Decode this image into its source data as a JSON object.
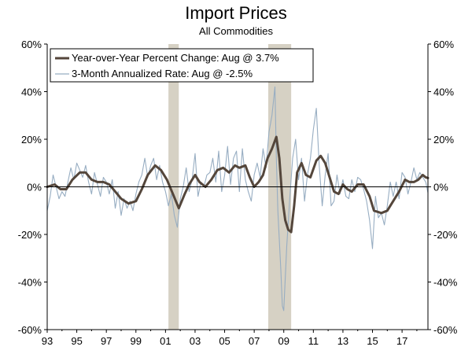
{
  "chart_data": {
    "type": "line",
    "title": "Import Prices",
    "subtitle": "All Commodities",
    "xlabel": "",
    "ylabel": "",
    "xlim": [
      1993.0,
      2018.75
    ],
    "ylim": [
      -60,
      60
    ],
    "y_ticks": [
      60,
      40,
      20,
      0,
      -20,
      -40,
      -60
    ],
    "y_tick_labels": [
      "60%",
      "40%",
      "20%",
      "0%",
      "-20%",
      "-40%",
      "-60%"
    ],
    "x_ticks": [
      1993,
      1995,
      1997,
      1999,
      2001,
      2003,
      2005,
      2007,
      2009,
      2011,
      2013,
      2015,
      2017
    ],
    "x_tick_labels": [
      "93",
      "95",
      "97",
      "99",
      "01",
      "03",
      "05",
      "07",
      "09",
      "11",
      "13",
      "15",
      "17"
    ],
    "recessions": [
      [
        2001.2,
        2001.9
      ],
      [
        2007.95,
        2009.5
      ]
    ],
    "legend_position": "top-left",
    "colors": {
      "yoy": "#54463b",
      "three_month": "#97adc2",
      "recession": "#d6d1c4",
      "axis": "#000000"
    },
    "series": [
      {
        "name": "Year-over-Year Percent Change: Aug @ 3.7%",
        "key": "yoy",
        "points": [
          [
            1993.0,
            0
          ],
          [
            1993.5,
            1
          ],
          [
            1993.9,
            -1
          ],
          [
            1994.3,
            -1
          ],
          [
            1994.7,
            3
          ],
          [
            1995.2,
            6
          ],
          [
            1995.6,
            6
          ],
          [
            1996.0,
            3
          ],
          [
            1996.4,
            2
          ],
          [
            1996.8,
            2
          ],
          [
            1997.2,
            1
          ],
          [
            1997.6,
            -2
          ],
          [
            1998.0,
            -5
          ],
          [
            1998.5,
            -7
          ],
          [
            1999.0,
            -6
          ],
          [
            1999.4,
            -1
          ],
          [
            1999.8,
            5
          ],
          [
            2000.3,
            9
          ],
          [
            2000.7,
            7
          ],
          [
            2001.1,
            3
          ],
          [
            2001.5,
            -3
          ],
          [
            2001.9,
            -9
          ],
          [
            2002.3,
            -3
          ],
          [
            2002.6,
            1
          ],
          [
            2003.0,
            5
          ],
          [
            2003.3,
            2
          ],
          [
            2003.7,
            0
          ],
          [
            2004.1,
            3
          ],
          [
            2004.5,
            7
          ],
          [
            2004.9,
            8
          ],
          [
            2005.3,
            6
          ],
          [
            2005.7,
            9
          ],
          [
            2006.0,
            8
          ],
          [
            2006.4,
            9
          ],
          [
            2006.7,
            4
          ],
          [
            2007.0,
            0
          ],
          [
            2007.3,
            2
          ],
          [
            2007.6,
            5
          ],
          [
            2007.9,
            12
          ],
          [
            2008.2,
            16
          ],
          [
            2008.5,
            21
          ],
          [
            2008.7,
            12
          ],
          [
            2008.9,
            -5
          ],
          [
            2009.1,
            -14
          ],
          [
            2009.3,
            -18
          ],
          [
            2009.5,
            -19
          ],
          [
            2009.7,
            -8
          ],
          [
            2009.9,
            6
          ],
          [
            2010.2,
            10
          ],
          [
            2010.5,
            5
          ],
          [
            2010.8,
            4
          ],
          [
            2011.2,
            11
          ],
          [
            2011.5,
            13
          ],
          [
            2011.8,
            10
          ],
          [
            2012.1,
            4
          ],
          [
            2012.4,
            -2
          ],
          [
            2012.7,
            -3
          ],
          [
            2013.0,
            1
          ],
          [
            2013.3,
            -1
          ],
          [
            2013.6,
            -2
          ],
          [
            2014.0,
            1
          ],
          [
            2014.4,
            1
          ],
          [
            2014.8,
            -4
          ],
          [
            2015.1,
            -10
          ],
          [
            2015.6,
            -11
          ],
          [
            2016.0,
            -10
          ],
          [
            2016.4,
            -6
          ],
          [
            2016.8,
            -2
          ],
          [
            2017.2,
            3
          ],
          [
            2017.5,
            2
          ],
          [
            2017.8,
            2
          ],
          [
            2018.1,
            3
          ],
          [
            2018.4,
            5
          ],
          [
            2018.6,
            4
          ],
          [
            2018.75,
            3.7
          ]
        ]
      },
      {
        "name": "3-Month Annualized Rate: Aug @ -2.5%",
        "key": "three_month",
        "points": [
          [
            1993.0,
            -10
          ],
          [
            1993.2,
            -4
          ],
          [
            1993.4,
            5
          ],
          [
            1993.6,
            0
          ],
          [
            1993.8,
            -5
          ],
          [
            1994.0,
            -2
          ],
          [
            1994.2,
            -4
          ],
          [
            1994.4,
            2
          ],
          [
            1994.6,
            8
          ],
          [
            1994.8,
            3
          ],
          [
            1995.0,
            10
          ],
          [
            1995.2,
            7
          ],
          [
            1995.4,
            4
          ],
          [
            1995.6,
            9
          ],
          [
            1995.8,
            2
          ],
          [
            1996.0,
            -3
          ],
          [
            1996.2,
            6
          ],
          [
            1996.4,
            1
          ],
          [
            1996.6,
            -4
          ],
          [
            1996.8,
            4
          ],
          [
            1997.0,
            2
          ],
          [
            1997.2,
            -3
          ],
          [
            1997.4,
            3
          ],
          [
            1997.6,
            -9
          ],
          [
            1997.8,
            -2
          ],
          [
            1998.0,
            -12
          ],
          [
            1998.2,
            -5
          ],
          [
            1998.4,
            -9
          ],
          [
            1998.6,
            -6
          ],
          [
            1998.8,
            -10
          ],
          [
            1999.0,
            -3
          ],
          [
            1999.2,
            2
          ],
          [
            1999.4,
            5
          ],
          [
            1999.6,
            12
          ],
          [
            1999.8,
            4
          ],
          [
            2000.0,
            9
          ],
          [
            2000.2,
            12
          ],
          [
            2000.4,
            3
          ],
          [
            2000.6,
            9
          ],
          [
            2000.8,
            2
          ],
          [
            2001.0,
            -2
          ],
          [
            2001.2,
            -8
          ],
          [
            2001.4,
            -3
          ],
          [
            2001.6,
            -12
          ],
          [
            2001.8,
            -17
          ],
          [
            2002.0,
            -5
          ],
          [
            2002.2,
            0
          ],
          [
            2002.4,
            8
          ],
          [
            2002.6,
            -2
          ],
          [
            2002.8,
            3
          ],
          [
            2003.0,
            14
          ],
          [
            2003.2,
            -4
          ],
          [
            2003.4,
            2
          ],
          [
            2003.6,
            0
          ],
          [
            2003.8,
            5
          ],
          [
            2004.0,
            6
          ],
          [
            2004.2,
            12
          ],
          [
            2004.4,
            2
          ],
          [
            2004.6,
            15
          ],
          [
            2004.8,
            -2
          ],
          [
            2005.0,
            5
          ],
          [
            2005.2,
            17
          ],
          [
            2005.4,
            1
          ],
          [
            2005.6,
            12
          ],
          [
            2005.8,
            15
          ],
          [
            2006.0,
            -2
          ],
          [
            2006.2,
            16
          ],
          [
            2006.4,
            3
          ],
          [
            2006.6,
            -2
          ],
          [
            2006.8,
            -6
          ],
          [
            2007.0,
            5
          ],
          [
            2007.2,
            10
          ],
          [
            2007.4,
            4
          ],
          [
            2007.6,
            16
          ],
          [
            2007.8,
            8
          ],
          [
            2008.0,
            23
          ],
          [
            2008.2,
            30
          ],
          [
            2008.4,
            42
          ],
          [
            2008.5,
            12
          ],
          [
            2008.6,
            -10
          ],
          [
            2008.8,
            -35
          ],
          [
            2008.9,
            -50
          ],
          [
            2009.0,
            -52
          ],
          [
            2009.2,
            -25
          ],
          [
            2009.4,
            -5
          ],
          [
            2009.6,
            12
          ],
          [
            2009.8,
            20
          ],
          [
            2010.0,
            3
          ],
          [
            2010.2,
            12
          ],
          [
            2010.4,
            -6
          ],
          [
            2010.6,
            5
          ],
          [
            2010.8,
            12
          ],
          [
            2011.0,
            24
          ],
          [
            2011.2,
            33
          ],
          [
            2011.4,
            9
          ],
          [
            2011.6,
            -8
          ],
          [
            2011.8,
            5
          ],
          [
            2012.0,
            14
          ],
          [
            2012.2,
            -8
          ],
          [
            2012.4,
            -6
          ],
          [
            2012.6,
            5
          ],
          [
            2012.8,
            -3
          ],
          [
            2013.0,
            3
          ],
          [
            2013.2,
            -4
          ],
          [
            2013.4,
            -5
          ],
          [
            2013.6,
            3
          ],
          [
            2013.8,
            -2
          ],
          [
            2014.0,
            4
          ],
          [
            2014.2,
            3
          ],
          [
            2014.4,
            -1
          ],
          [
            2014.6,
            -6
          ],
          [
            2014.8,
            -14
          ],
          [
            2015.0,
            -26
          ],
          [
            2015.2,
            -4
          ],
          [
            2015.4,
            -13
          ],
          [
            2015.6,
            -11
          ],
          [
            2015.8,
            -16
          ],
          [
            2016.0,
            -8
          ],
          [
            2016.2,
            2
          ],
          [
            2016.4,
            -4
          ],
          [
            2016.6,
            2
          ],
          [
            2016.8,
            -5
          ],
          [
            2017.0,
            6
          ],
          [
            2017.2,
            4
          ],
          [
            2017.4,
            -3
          ],
          [
            2017.6,
            2
          ],
          [
            2017.8,
            8
          ],
          [
            2018.0,
            3
          ],
          [
            2018.2,
            6
          ],
          [
            2018.4,
            4
          ],
          [
            2018.6,
            2
          ],
          [
            2018.75,
            -2.5
          ]
        ]
      }
    ]
  }
}
